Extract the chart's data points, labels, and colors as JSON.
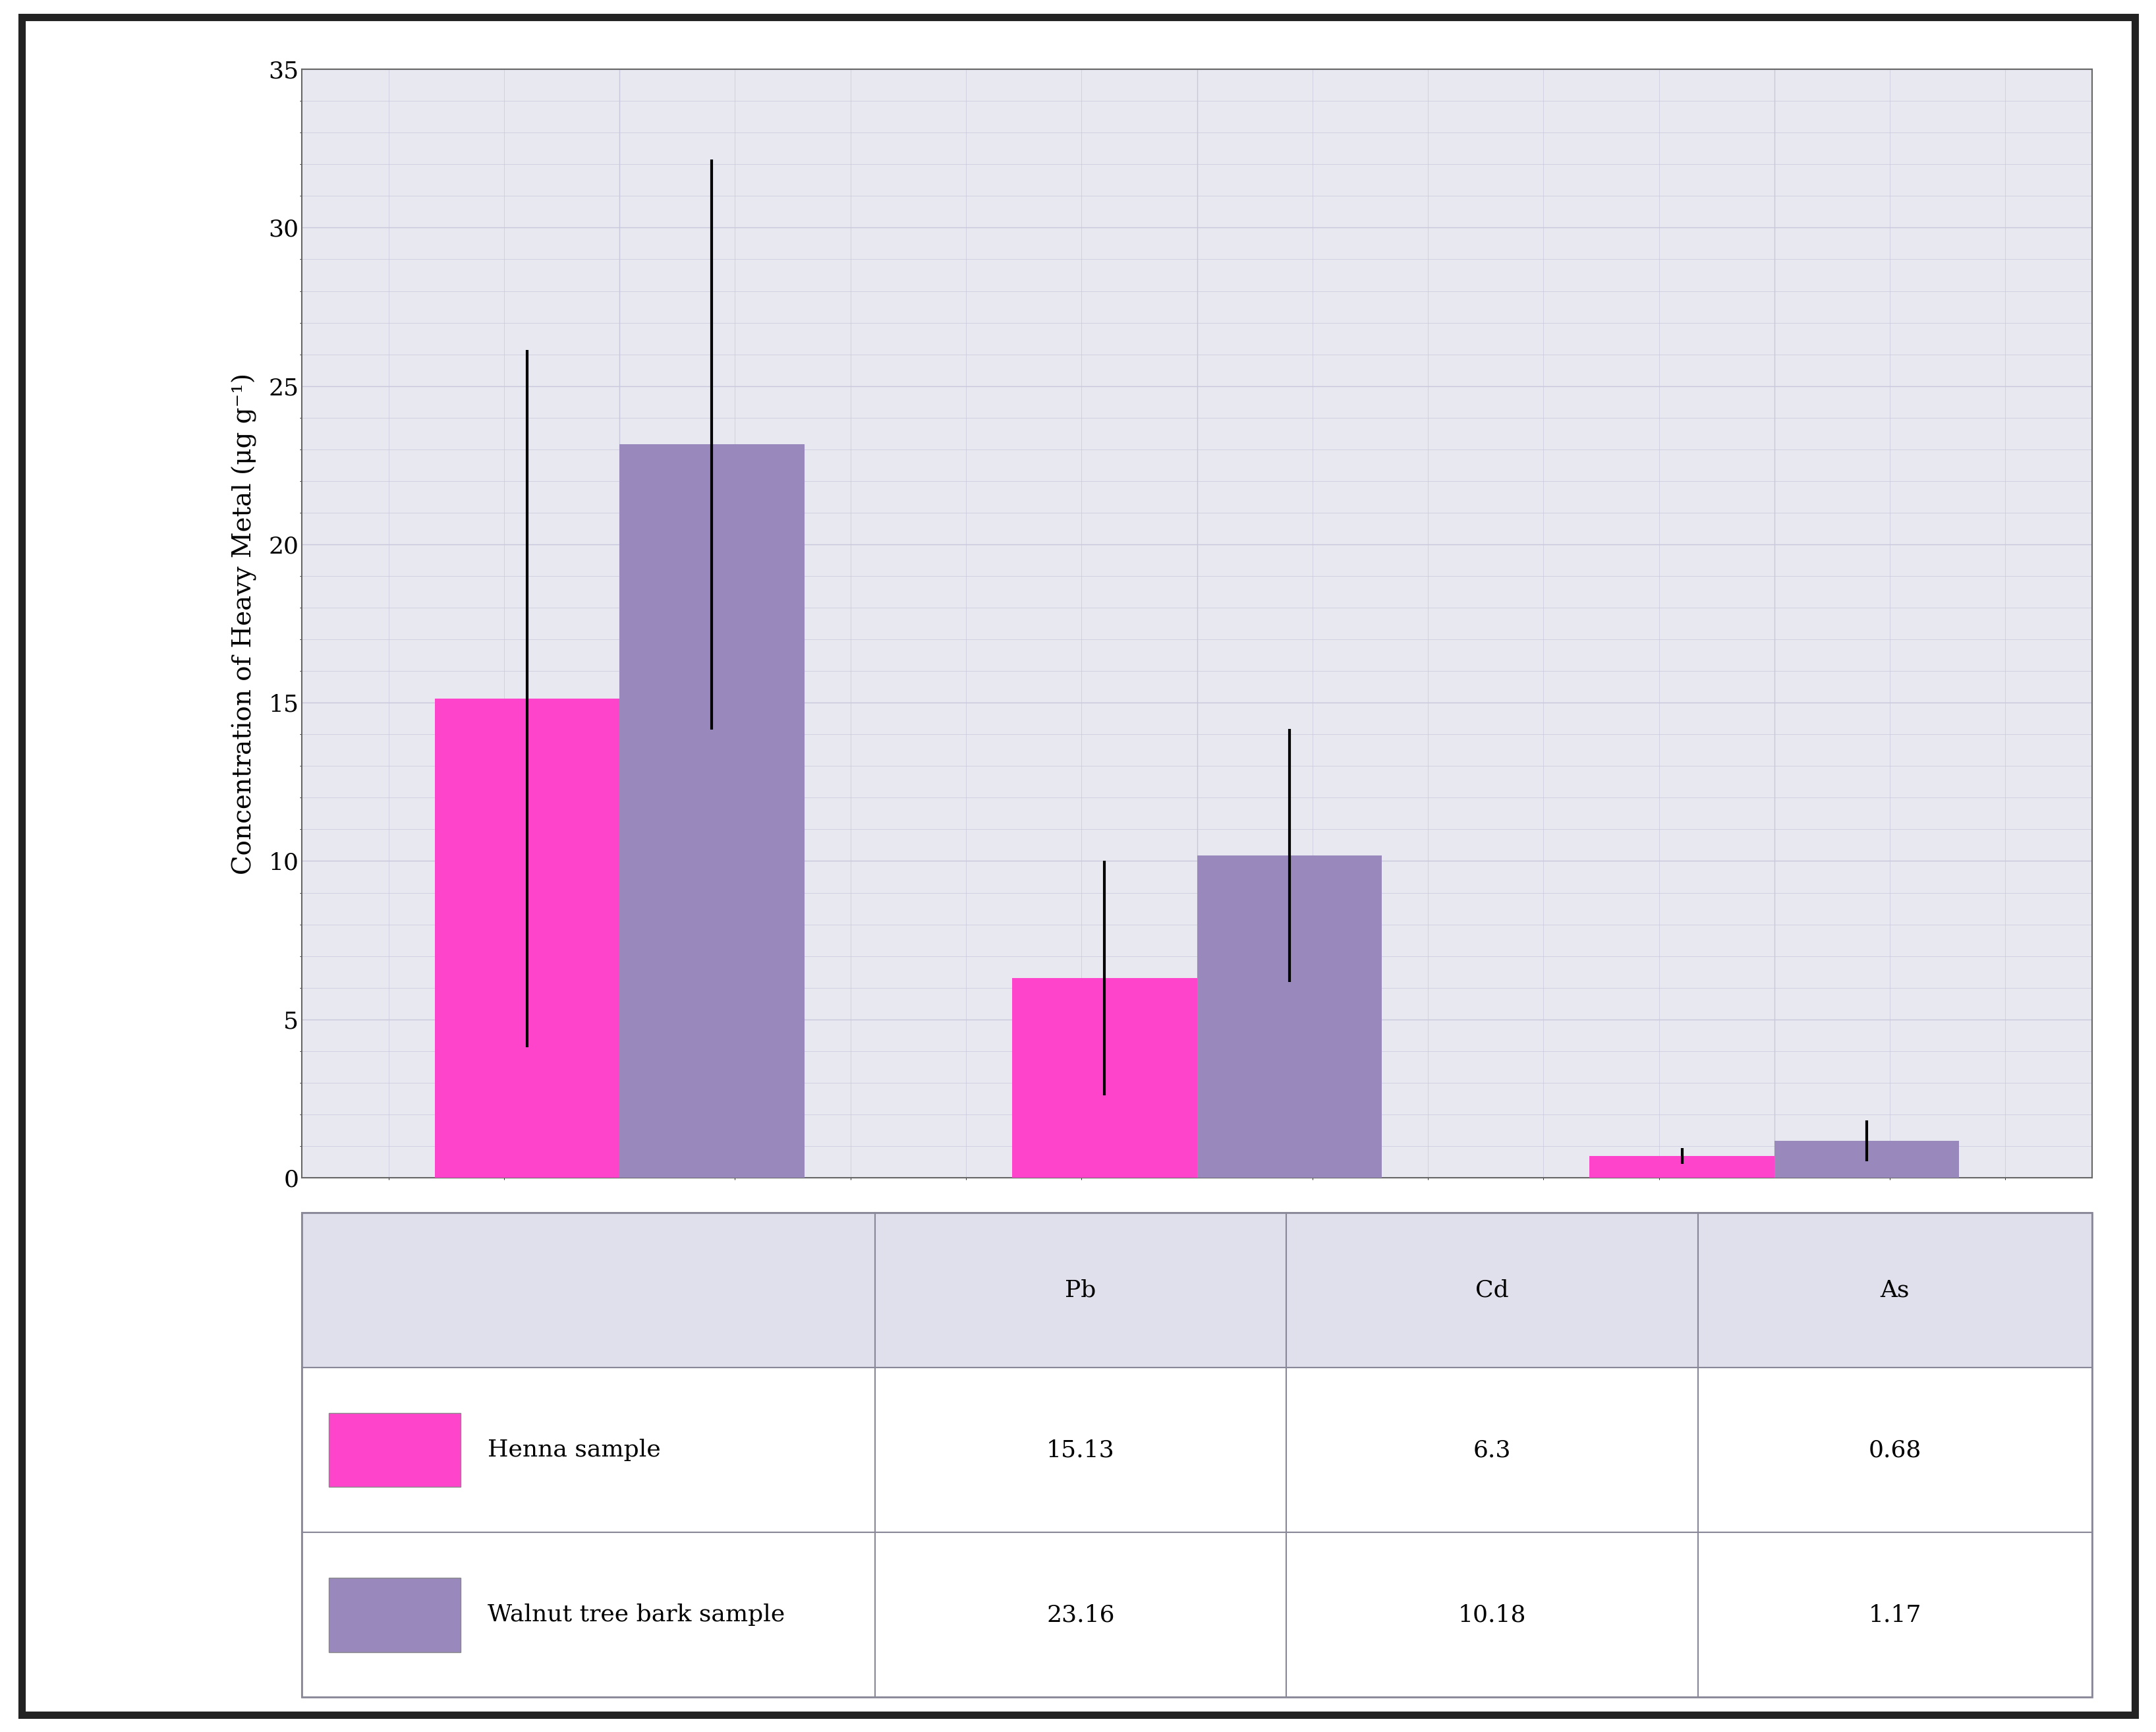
{
  "categories": [
    "Pb",
    "Cd",
    "As"
  ],
  "series": [
    {
      "label": "Henna sample",
      "values": [
        15.13,
        6.3,
        0.68
      ],
      "errors": [
        11.0,
        3.7,
        0.25
      ],
      "color": "#FF44CC"
    },
    {
      "label": "Walnut tree bark sample",
      "values": [
        23.16,
        10.18,
        1.17
      ],
      "errors": [
        9.0,
        4.0,
        0.65
      ],
      "color": "#9988BB"
    }
  ],
  "ylabel": "Concentration of Heavy Metal (μg g⁻¹)",
  "ylim": [
    0,
    35
  ],
  "yticks": [
    0,
    5,
    10,
    15,
    20,
    25,
    30,
    35
  ],
  "table_values": [
    [
      "15.13",
      "6.3",
      "0.68"
    ],
    [
      "23.16",
      "10.18",
      "1.17"
    ]
  ],
  "grid_color": "#C8C8DC",
  "plot_bg_color": "#E8E8F0",
  "fig_bg_color": "#FFFFFF",
  "bar_width": 0.32,
  "axis_fontsize": 28,
  "tick_fontsize": 26,
  "table_fontsize": 26,
  "ylabel_fontsize": 28,
  "legend_color_henna": "#FF44CC",
  "legend_color_walnut": "#9988BB",
  "border_color": "#333333",
  "table_header_bg": "#E0E0EC",
  "table_cell_bg": "#FFFFFF",
  "table_border_color": "#888899"
}
